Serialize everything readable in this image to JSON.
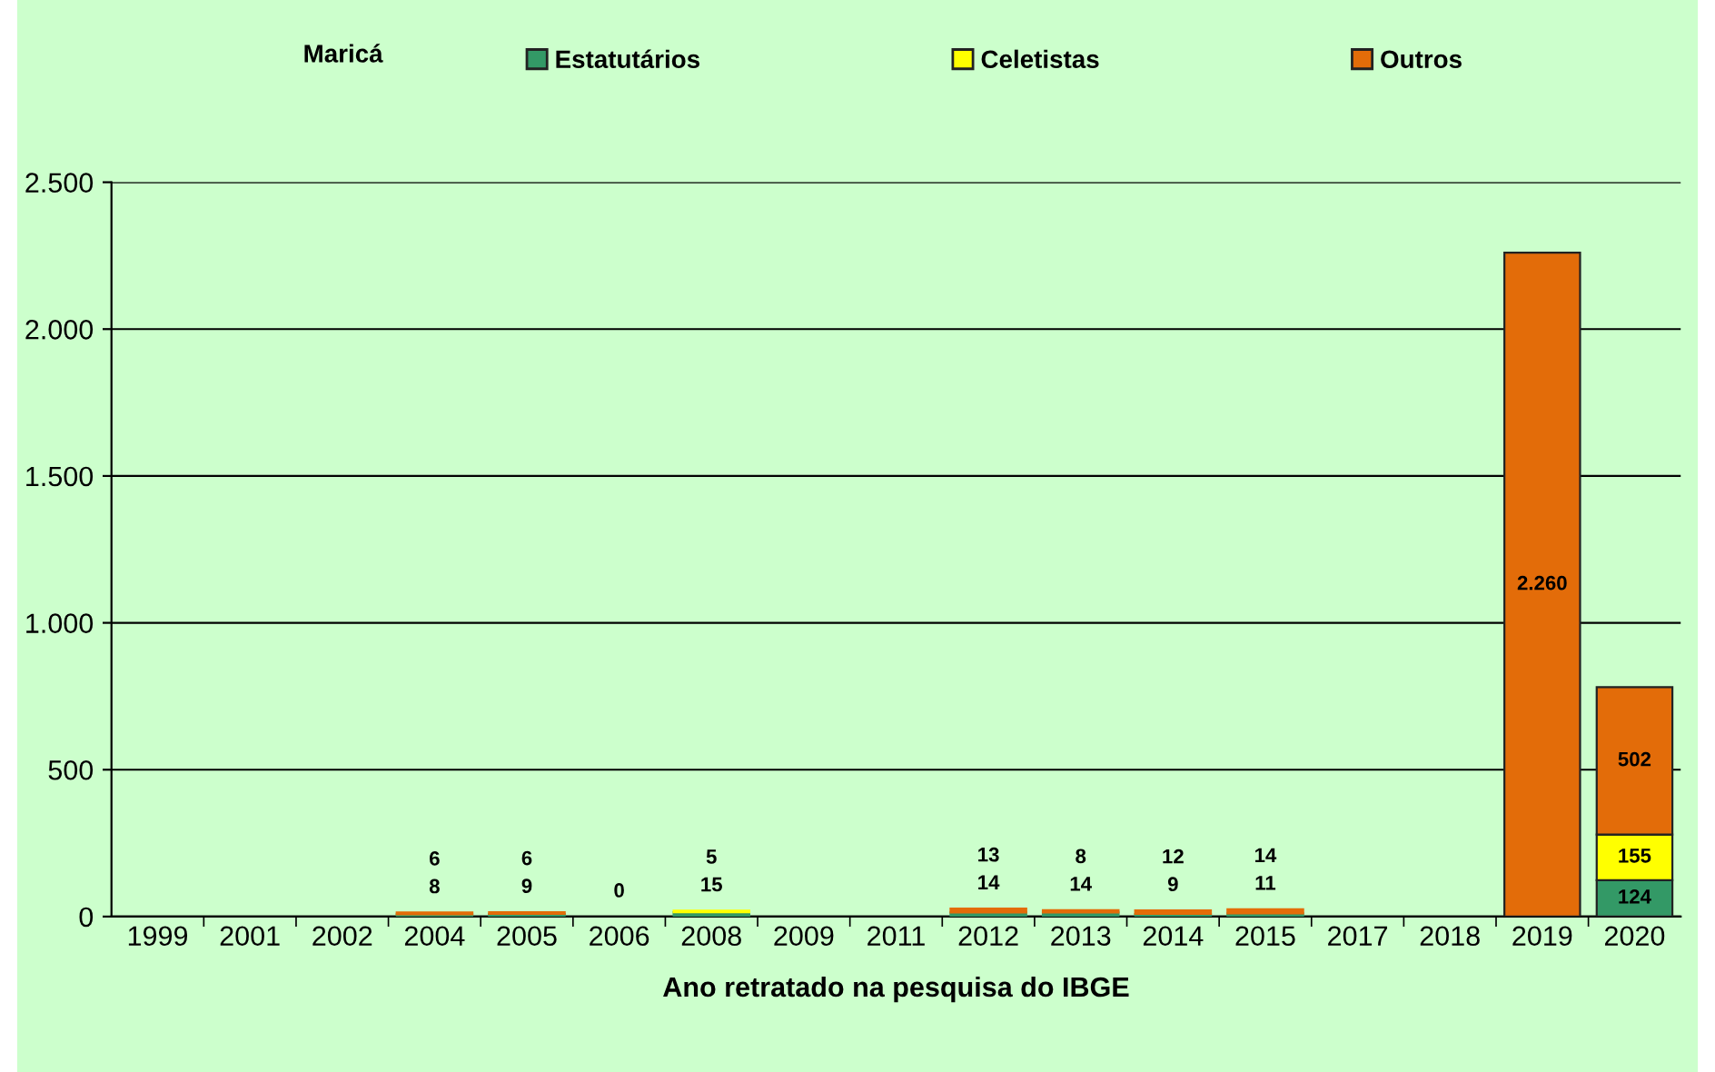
{
  "chart_data": {
    "type": "bar",
    "stacked": true,
    "legend_title": "Maricá",
    "legend": "top",
    "xlabel": "Ano retratado na pesquisa do IBGE",
    "categories": [
      "1999",
      "2001",
      "2002",
      "2004",
      "2005",
      "2006",
      "2008",
      "2009",
      "2011",
      "2012",
      "2013",
      "2014",
      "2015",
      "2017",
      "2018",
      "2019",
      "2020"
    ],
    "series": [
      {
        "name": "Estatutários",
        "color": "#339966",
        "values": [
          null,
          null,
          null,
          8,
          9,
          0,
          15,
          null,
          null,
          14,
          14,
          9,
          11,
          null,
          null,
          null,
          124
        ],
        "value_labels": [
          null,
          null,
          null,
          "8",
          "9",
          "0",
          "15",
          null,
          null,
          "14",
          "14",
          "9",
          "11",
          null,
          null,
          null,
          "124"
        ]
      },
      {
        "name": "Celetistas",
        "color": "#ffff00",
        "values": [
          null,
          null,
          null,
          null,
          null,
          null,
          5,
          null,
          null,
          null,
          null,
          null,
          null,
          null,
          null,
          null,
          155
        ],
        "value_labels": [
          null,
          null,
          null,
          null,
          null,
          null,
          "5",
          null,
          null,
          null,
          null,
          null,
          null,
          null,
          null,
          null,
          "155"
        ]
      },
      {
        "name": "Outros",
        "color": "#e36c09",
        "values": [
          null,
          null,
          null,
          6,
          6,
          null,
          null,
          null,
          null,
          13,
          8,
          12,
          14,
          null,
          null,
          2260,
          502
        ],
        "value_labels": [
          null,
          null,
          null,
          "6",
          "6",
          null,
          null,
          null,
          null,
          "13",
          "8",
          "12",
          "14",
          null,
          null,
          "2.260",
          "502"
        ]
      }
    ],
    "ylim": [
      0,
      2500
    ],
    "yticks": [
      {
        "value": 0,
        "label": "0"
      },
      {
        "value": 500,
        "label": "500"
      },
      {
        "value": 1000,
        "label": "1.000"
      },
      {
        "value": 1500,
        "label": "1.500"
      },
      {
        "value": 2000,
        "label": "2.000"
      },
      {
        "value": 2500,
        "label": "2.500"
      }
    ],
    "grid": "y"
  }
}
